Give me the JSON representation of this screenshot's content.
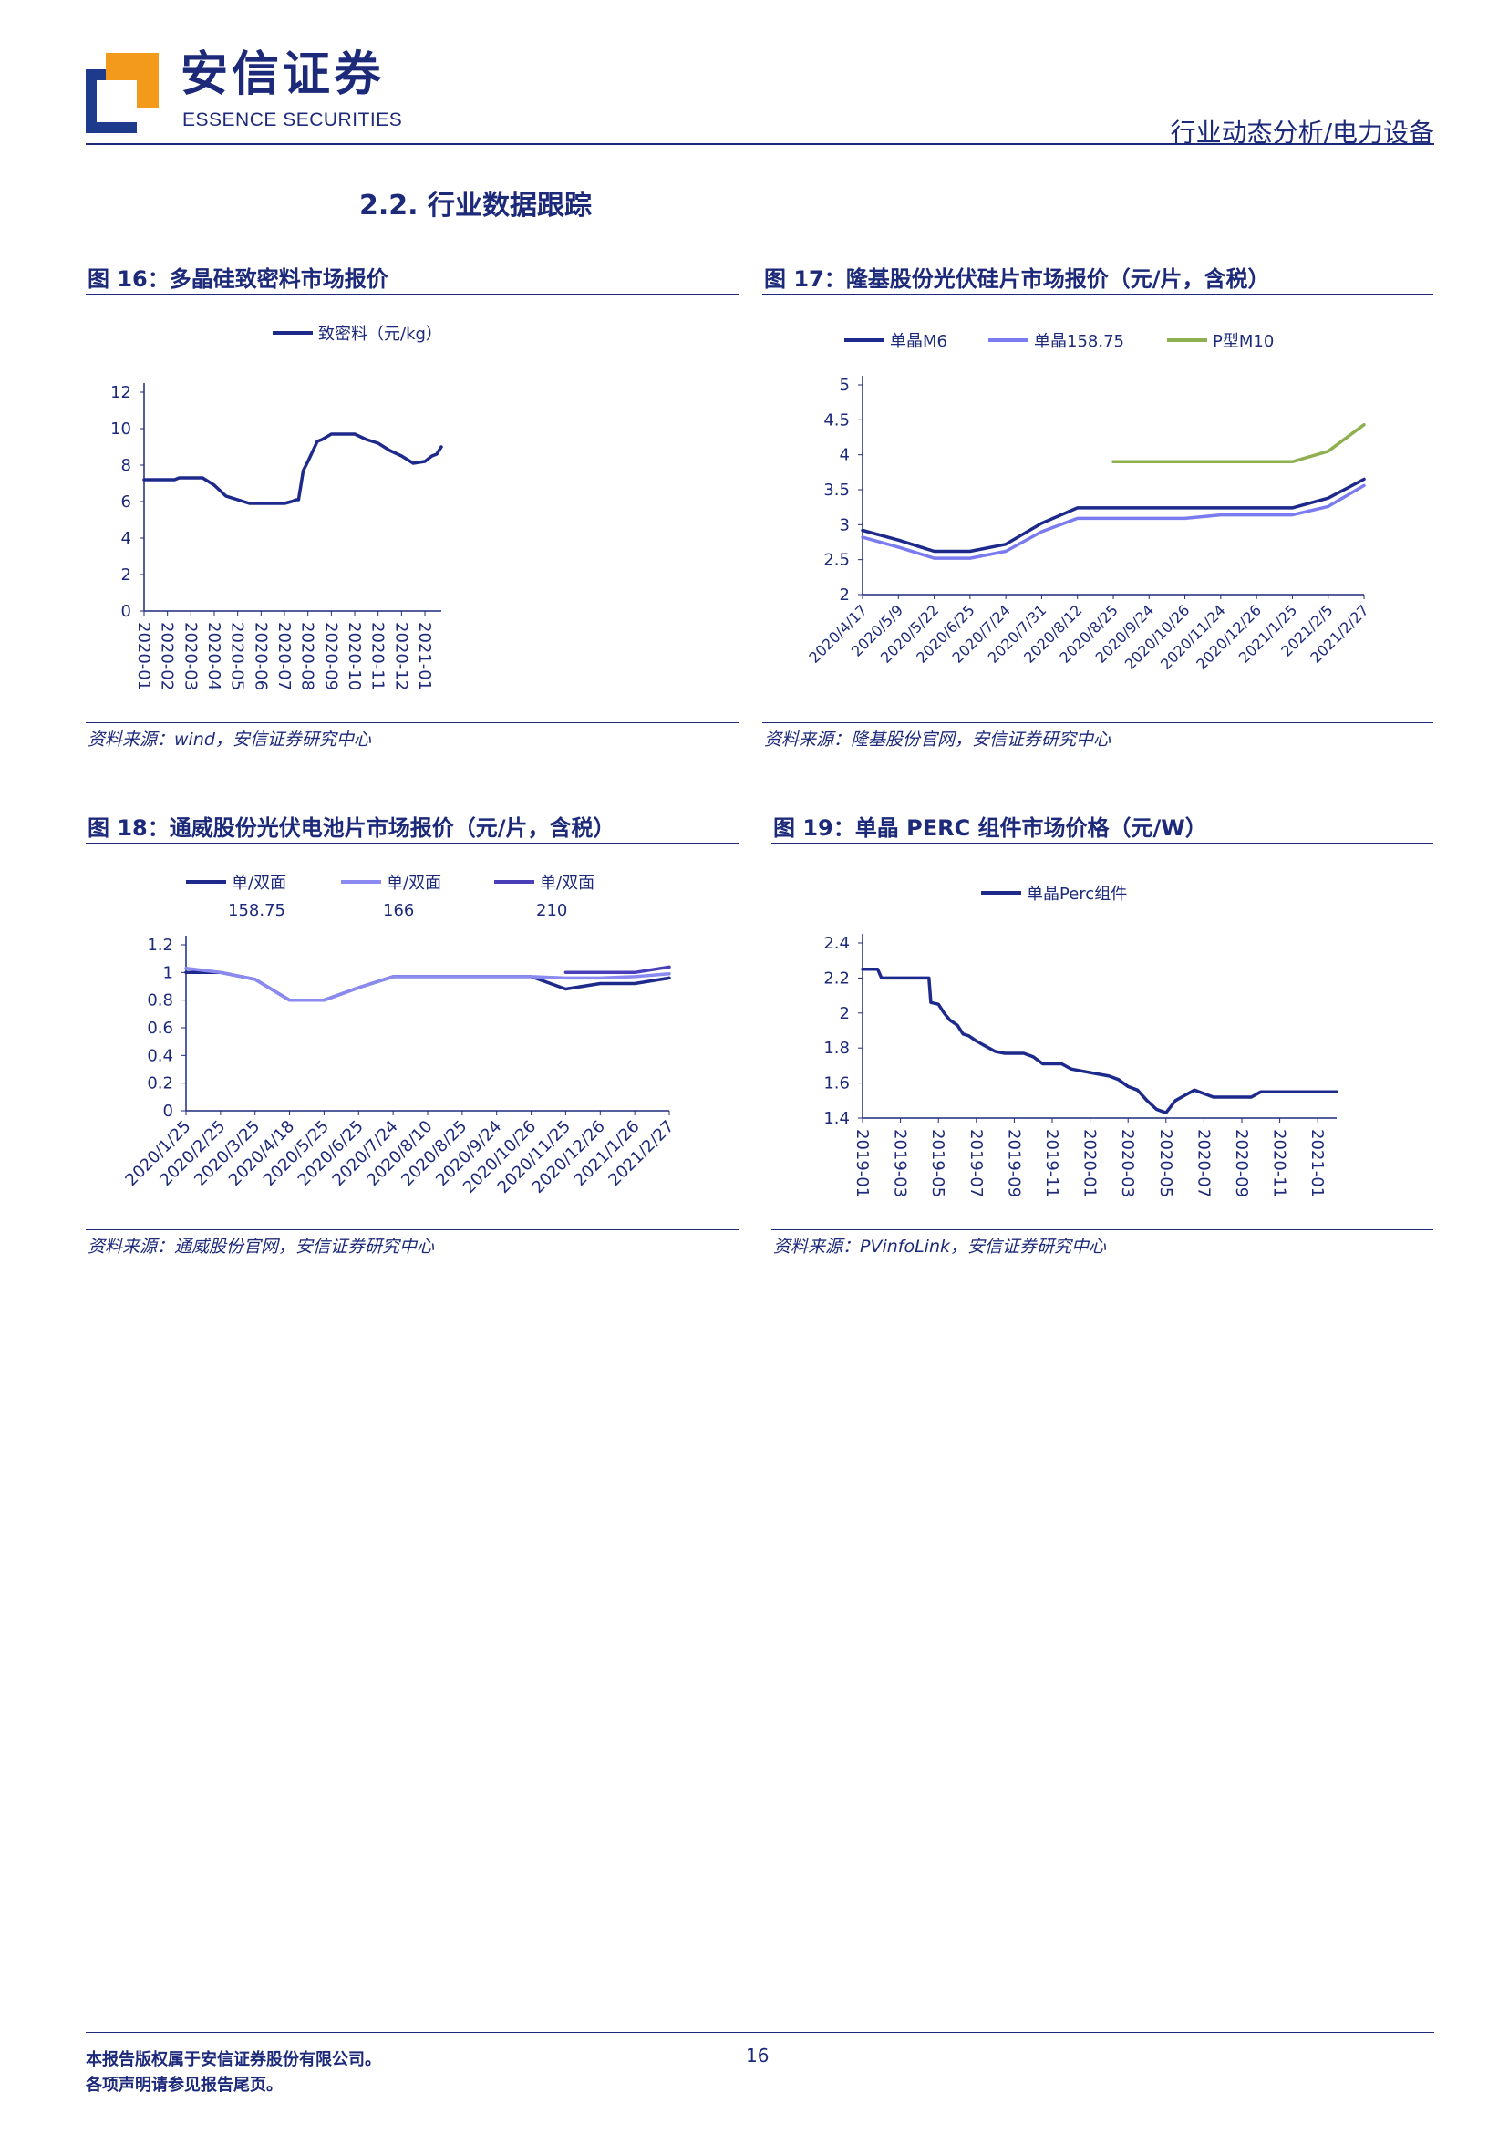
{
  "header": {
    "logo_cn": "安信证券",
    "logo_en": "ESSENCE SECURITIES",
    "report_type": "行业动态分析/电力设备"
  },
  "section_title": "2.2. 行业数据跟踪",
  "figures": [
    {
      "title": "图 16：多晶硅致密料市场报价",
      "source": "资料来源：wind，安信证券研究中心"
    },
    {
      "title": "图 17：隆基股份光伏硅片市场报价（元/片，含税）",
      "source": "资料来源：隆基股份官网，安信证券研究中心"
    },
    {
      "title": "图 18：通威股份光伏电池片市场报价（元/片，含税）",
      "source": "资料来源：通威股份官网，安信证券研究中心"
    },
    {
      "title": "图 19：单晶 PERC 组件市场价格（元/W）",
      "source": "资料来源：PVinfoLink，安信证券研究中心"
    }
  ],
  "chart_data": [
    {
      "type": "line",
      "title": "",
      "x_labels": [
        "2020-01",
        "2020-02",
        "2020-03",
        "2020-04",
        "2020-05",
        "2020-06",
        "2020-07",
        "2020-08",
        "2020-09",
        "2020-10",
        "2020-11",
        "2020-12",
        "2021-01"
      ],
      "yticks": [
        "0",
        "2",
        "4",
        "6",
        "8",
        "10",
        "12"
      ],
      "ylim": [
        0,
        12
      ],
      "grid": false,
      "legend_position": "top",
      "series": [
        {
          "name": "致密料（元/kg）",
          "color": "#1d2a8c",
          "x": [
            0,
            0.5,
            1,
            1.3,
            1.5,
            2,
            2.5,
            3,
            3.5,
            4,
            4.5,
            5,
            5.5,
            6,
            6.3,
            6.5,
            6.6,
            6.8,
            7,
            7.4,
            7.6,
            8,
            8.5,
            9,
            9.5,
            10,
            10.5,
            11,
            11.5,
            12,
            12.3,
            12.5,
            12.7
          ],
          "y": [
            7.2,
            7.2,
            7.2,
            7.2,
            7.3,
            7.3,
            7.3,
            6.9,
            6.3,
            6.1,
            5.9,
            5.9,
            5.9,
            5.9,
            6.0,
            6.1,
            6.1,
            7.7,
            8.2,
            9.3,
            9.4,
            9.7,
            9.7,
            9.7,
            9.4,
            9.2,
            8.8,
            8.5,
            8.1,
            8.2,
            8.5,
            8.6,
            9.0
          ]
        }
      ]
    },
    {
      "type": "line",
      "title": "",
      "x_labels": [
        "2020/4/17",
        "2020/5/9",
        "2020/5/22",
        "2020/6/25",
        "2020/7/24",
        "2020/7/31",
        "2020/8/12",
        "2020/8/25",
        "2020/9/24",
        "2020/10/26",
        "2020/11/24",
        "2020/12/26",
        "2021/1/25",
        "2021/2/5",
        "2021/2/27"
      ],
      "yticks": [
        "2",
        "2.5",
        "3",
        "3.5",
        "4",
        "4.5",
        "5"
      ],
      "ylim": [
        2,
        5
      ],
      "grid": false,
      "legend_position": "top",
      "series": [
        {
          "name": "单晶M6",
          "color": "#1d2a8c",
          "x": [
            0,
            1,
            2,
            3,
            4,
            5,
            6,
            7,
            8,
            9,
            10,
            11,
            12,
            13,
            14
          ],
          "y": [
            2.92,
            2.78,
            2.62,
            2.62,
            2.72,
            3.02,
            3.24,
            3.24,
            3.24,
            3.24,
            3.24,
            3.24,
            3.24,
            3.38,
            3.65
          ]
        },
        {
          "name": "单晶158.75",
          "color": "#7b7bf0",
          "x": [
            0,
            1,
            2,
            3,
            4,
            5,
            6,
            7,
            8,
            9,
            10,
            11,
            12,
            13,
            14
          ],
          "y": [
            2.82,
            2.68,
            2.52,
            2.52,
            2.62,
            2.9,
            3.09,
            3.09,
            3.09,
            3.09,
            3.14,
            3.14,
            3.14,
            3.26,
            3.56
          ]
        },
        {
          "name": "P型M10",
          "color": "#8fb050",
          "x": [
            7,
            8,
            9,
            10,
            11,
            12,
            13,
            14
          ],
          "y": [
            3.9,
            3.9,
            3.9,
            3.9,
            3.9,
            3.9,
            4.05,
            4.43
          ]
        }
      ]
    },
    {
      "type": "line",
      "title": "",
      "x_labels": [
        "2020/1/25",
        "2020/2/25",
        "2020/3/25",
        "2020/4/18",
        "2020/5/25",
        "2020/6/25",
        "2020/7/24",
        "2020/8/10",
        "2020/8/25",
        "2020/9/24",
        "2020/10/26",
        "2020/11/25",
        "2020/12/26",
        "2021/1/26",
        "2021/2/27"
      ],
      "yticks": [
        "0",
        "0.2",
        "0.4",
        "0.6",
        "0.8",
        "1",
        "1.2"
      ],
      "ylim": [
        0,
        1.2
      ],
      "grid": false,
      "legend_position": "top",
      "series": [
        {
          "name": "单/双面 158.75",
          "color": "#1d2a8c",
          "x": [
            0,
            1,
            2,
            3,
            4,
            5,
            6,
            7,
            8,
            9,
            10,
            11,
            12,
            13,
            14
          ],
          "y": [
            1.0,
            1.0,
            0.95,
            0.8,
            0.8,
            0.89,
            0.97,
            0.97,
            0.97,
            0.97,
            0.97,
            0.88,
            0.92,
            0.92,
            0.96
          ]
        },
        {
          "name": "单/双面 166",
          "color": "#8a8af0",
          "x": [
            0,
            1,
            2,
            3,
            4,
            5,
            6,
            7,
            8,
            9,
            10,
            11,
            12,
            13,
            14
          ],
          "y": [
            1.03,
            1.0,
            0.95,
            0.8,
            0.8,
            0.89,
            0.97,
            0.97,
            0.97,
            0.97,
            0.97,
            0.96,
            0.96,
            0.97,
            0.99
          ]
        },
        {
          "name": "单/双面 210",
          "color": "#4a3fb8",
          "x": [
            11,
            12,
            13,
            14
          ],
          "y": [
            1.0,
            1.0,
            1.0,
            1.04
          ]
        }
      ]
    },
    {
      "type": "line",
      "title": "",
      "x_labels": [
        "2019-01",
        "2019-03",
        "2019-05",
        "2019-07",
        "2019-09",
        "2019-11",
        "2020-01",
        "2020-03",
        "2020-05",
        "2020-07",
        "2020-09",
        "2020-11",
        "2021-01"
      ],
      "yticks": [
        "1.4",
        "1.6",
        "1.8",
        "2",
        "2.2",
        "2.4"
      ],
      "ylim": [
        1.4,
        2.4
      ],
      "grid": false,
      "legend_position": "top",
      "series": [
        {
          "name": "单晶Perc组件",
          "color": "#1d2a8c",
          "x": [
            0,
            0.8,
            1,
            2,
            3,
            3.5,
            3.6,
            4,
            4.3,
            4.6,
            5,
            5.3,
            5.6,
            6,
            6.5,
            7,
            7.5,
            8,
            8.5,
            9,
            9.5,
            10,
            10.5,
            11,
            11.5,
            12,
            12.5,
            13,
            13.5,
            14,
            14.5,
            15,
            15.5,
            16,
            16.5,
            17,
            17.5,
            18,
            18.5,
            19,
            19.5,
            20,
            20.5,
            21,
            22,
            23,
            24,
            25
          ],
          "y": [
            2.25,
            2.25,
            2.2,
            2.2,
            2.2,
            2.2,
            2.06,
            2.05,
            2.0,
            1.96,
            1.93,
            1.88,
            1.87,
            1.84,
            1.81,
            1.78,
            1.77,
            1.77,
            1.77,
            1.75,
            1.71,
            1.71,
            1.71,
            1.68,
            1.67,
            1.66,
            1.65,
            1.64,
            1.62,
            1.58,
            1.56,
            1.5,
            1.45,
            1.43,
            1.5,
            1.53,
            1.56,
            1.54,
            1.52,
            1.52,
            1.52,
            1.52,
            1.52,
            1.55,
            1.55,
            1.55,
            1.55,
            1.55
          ]
        }
      ]
    }
  ],
  "footer": {
    "line1": "本报告版权属于安信证券股份有限公司。",
    "line2": "各项声明请参见报告尾页。",
    "page": "16"
  }
}
